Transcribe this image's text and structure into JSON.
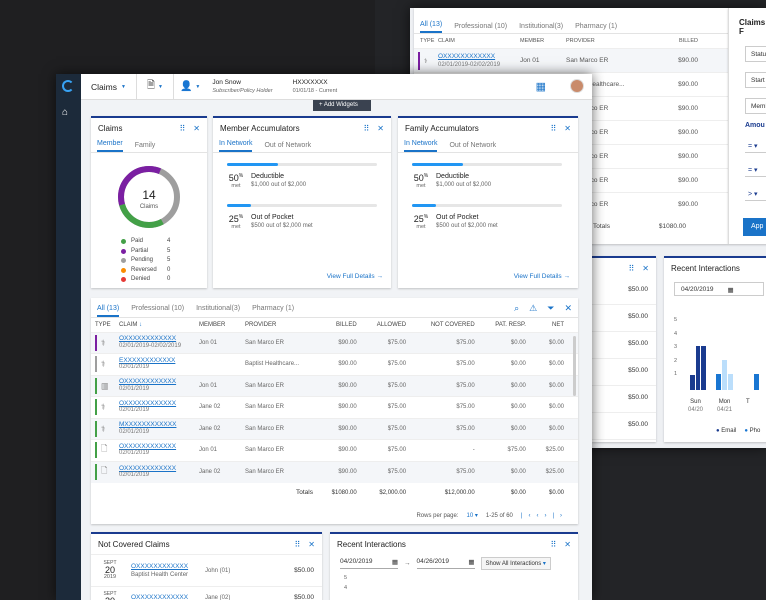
{
  "colors": {
    "accent": "#1a73c8",
    "navy": "#1a3b8f",
    "paid": "#43a047",
    "partial": "#7b1fa2",
    "pending": "#9e9e9e",
    "reversed": "#fb8c00",
    "denied": "#e53935"
  },
  "back": {
    "tabs": [
      "All (13)",
      "Professional (10)",
      "Institutional(3)",
      "Pharmacy (1)"
    ],
    "cols": [
      "TYPE",
      "CLAIM",
      "MEMBER",
      "PROVIDER",
      "BILLED"
    ],
    "rows": [
      {
        "claim": "OXXXXXXXXXXXX",
        "dates": "02/01/2019-02/02/2019",
        "member": "Jon 01",
        "provider": "San Marco ER",
        "billed": "$90.00"
      },
      {
        "claim": "",
        "dates": "",
        "member": "",
        "provider": "Baptist Healthcare...",
        "billed": "$90.00"
      },
      {
        "claim": "",
        "dates": "",
        "member": "",
        "provider": "San Marco ER",
        "billed": "$90.00"
      },
      {
        "claim": "",
        "dates": "",
        "member": "",
        "provider": "San Marco ER",
        "billed": "$90.00"
      },
      {
        "claim": "",
        "dates": "",
        "member": "",
        "provider": "San Marco ER",
        "billed": "$90.00"
      },
      {
        "claim": "",
        "dates": "",
        "member": "",
        "provider": "San Marco ER",
        "billed": "$90.00"
      },
      {
        "claim": "",
        "dates": "",
        "member": "",
        "provider": "San Marco ER",
        "billed": "$90.00"
      }
    ],
    "totals_label": "Totals",
    "totals_billed": "$1080.00",
    "filter_title": "Claims F",
    "filter_fields": [
      "Status",
      "Start",
      "Memb"
    ],
    "amount_label": "Amou",
    "ops": [
      "=",
      "=",
      ">"
    ],
    "apply": "App",
    "ri_title": "Recent Interactions",
    "ri_date": "04/20/2019",
    "ri_days": [
      {
        "d": "Sun",
        "n": "04/20"
      },
      {
        "d": "Mon",
        "n": "04/21"
      },
      {
        "d": "T",
        "n": ""
      }
    ],
    "ri_y": [
      "5",
      "4",
      "3",
      "2",
      "1"
    ],
    "ri_legend": [
      "Email",
      "Pho"
    ],
    "nc_amounts": [
      "$50.00",
      "$50.00",
      "$50.00",
      "$50.00",
      "$50.00",
      "$50.00"
    ]
  },
  "header": {
    "app_menu": "Claims",
    "user_name": "Jon Snow",
    "user_role": "Subscriber/Policy Holder",
    "id_top": "HXXXXXXX",
    "id_bottom": "01/01/18 - Current",
    "add_widgets": "+ Add Widgets"
  },
  "claims_card": {
    "title": "Claims",
    "tabs": [
      "Member",
      "Family"
    ],
    "total": "14",
    "total_label": "Claims",
    "legend": [
      {
        "label": "Paid",
        "count": "4",
        "color": "#43a047"
      },
      {
        "label": "Partial",
        "count": "5",
        "color": "#7b1fa2"
      },
      {
        "label": "Pending",
        "count": "5",
        "color": "#9e9e9e"
      },
      {
        "label": "Reversed",
        "count": "0",
        "color": "#fb8c00"
      },
      {
        "label": "Denied",
        "count": "0",
        "color": "#e53935"
      }
    ]
  },
  "member_acc": {
    "title": "Member Accumulators",
    "tabs": [
      "In Network",
      "Out of Network"
    ],
    "items": [
      {
        "pct": "50",
        "met": "met",
        "label": "Deductible",
        "detail": "$1,000 out of $2,000",
        "fill": 0.34
      },
      {
        "pct": "25",
        "met": "met",
        "label": "Out of Pocket",
        "detail": "$500 out of $2,000 met",
        "fill": 0.16
      }
    ],
    "link": "View Full Details"
  },
  "family_acc": {
    "title": "Family Accumulators",
    "tabs": [
      "In Network",
      "Out of Network"
    ],
    "items": [
      {
        "pct": "50",
        "met": "met",
        "label": "Deductible",
        "detail": "$1,000 out of $2,000",
        "fill": 0.34
      },
      {
        "pct": "25",
        "met": "met",
        "label": "Out of Pocket",
        "detail": "$500 out of $2,000 met",
        "fill": 0.16
      }
    ],
    "link": "View Full Details"
  },
  "table": {
    "tabs": [
      "All (13)",
      "Professional (10)",
      "Institutional(3)",
      "Pharmacy (1)"
    ],
    "cols": [
      "TYPE",
      "CLAIM",
      "MEMBER",
      "PROVIDER",
      "BILLED",
      "ALLOWED",
      "NOT COVERED",
      "PAT. RESP.",
      "NET"
    ],
    "rows": [
      {
        "claim": "OXXXXXXXXXXXX",
        "dates": "02/01/2019-02/02/2019",
        "member": "Jon 01",
        "provider": "San Marco ER",
        "billed": "$90.00",
        "allowed": "$75.00",
        "nc": "$75.00",
        "pr": "$0.00",
        "net": "$0.00",
        "color": "#7b1fa2",
        "icon": "stethoscope"
      },
      {
        "claim": "EXXXXXXXXXXXX",
        "dates": "02/01/2019",
        "member": "",
        "provider": "Baptist Healthcare...",
        "billed": "$90.00",
        "allowed": "$75.00",
        "nc": "$75.00",
        "pr": "$0.00",
        "net": "$0.00",
        "color": "#9e9e9e",
        "icon": "stethoscope"
      },
      {
        "claim": "OXXXXXXXXXXXX",
        "dates": "02/01/2019",
        "member": "Jon 01",
        "provider": "San Marco ER",
        "billed": "$90.00",
        "allowed": "$75.00",
        "nc": "$75.00",
        "pr": "$0.00",
        "net": "$0.00",
        "color": "#43a047",
        "icon": "building"
      },
      {
        "claim": "OXXXXXXXXXXXX",
        "dates": "02/01/2019",
        "member": "Jane 02",
        "provider": "San Marco ER",
        "billed": "$90.00",
        "allowed": "$75.00",
        "nc": "$75.00",
        "pr": "$0.00",
        "net": "$0.00",
        "color": "#43a047",
        "icon": "stethoscope"
      },
      {
        "claim": "MXXXXXXXXXXXX",
        "dates": "02/01/2019",
        "member": "Jane 02",
        "provider": "San Marco ER",
        "billed": "$90.00",
        "allowed": "$75.00",
        "nc": "$75.00",
        "pr": "$0.00",
        "net": "$0.00",
        "color": "#43a047",
        "icon": "stethoscope"
      },
      {
        "claim": "OXXXXXXXXXXXX",
        "dates": "02/01/2019",
        "member": "Jon 01",
        "provider": "San Marco ER",
        "billed": "$90.00",
        "allowed": "$75.00",
        "nc": "-",
        "pr": "$75.00",
        "net": "$25.00",
        "color": "#43a047",
        "icon": "doc"
      },
      {
        "claim": "OXXXXXXXXXXXX",
        "dates": "02/01/2019",
        "member": "Jane 02",
        "provider": "San Marco ER",
        "billed": "$90.00",
        "allowed": "$75.00",
        "nc": "$75.00",
        "pr": "$0.00",
        "net": "$25.00",
        "color": "#43a047",
        "icon": "doc"
      }
    ],
    "totals": {
      "label": "Totals",
      "billed": "$1080.00",
      "allowed": "$2,000.00",
      "nc": "$12,000.00",
      "pr": "$0.00",
      "net": "$0.00"
    },
    "rows_per_page": "Rows per page:",
    "page_size": "10",
    "range": "1-25 of 60"
  },
  "not_covered": {
    "title": "Not Covered Claims",
    "items": [
      {
        "month": "SEPT",
        "day": "20",
        "year": "2019",
        "claim": "OXXXXXXXXXXXX",
        "provider": "Baptist Health Center",
        "member": "John (01)",
        "amount": "$50.00"
      },
      {
        "month": "SEPT",
        "day": "20",
        "year": "",
        "claim": "OXXXXXXXXXXXX",
        "provider": "",
        "member": "Jane (02)",
        "amount": "$50.00"
      }
    ]
  },
  "recent": {
    "title": "Recent Interactions",
    "from": "04/20/2019",
    "to": "04/26/2019",
    "filter": "Show All Interactions",
    "y": [
      "5",
      "4"
    ]
  }
}
